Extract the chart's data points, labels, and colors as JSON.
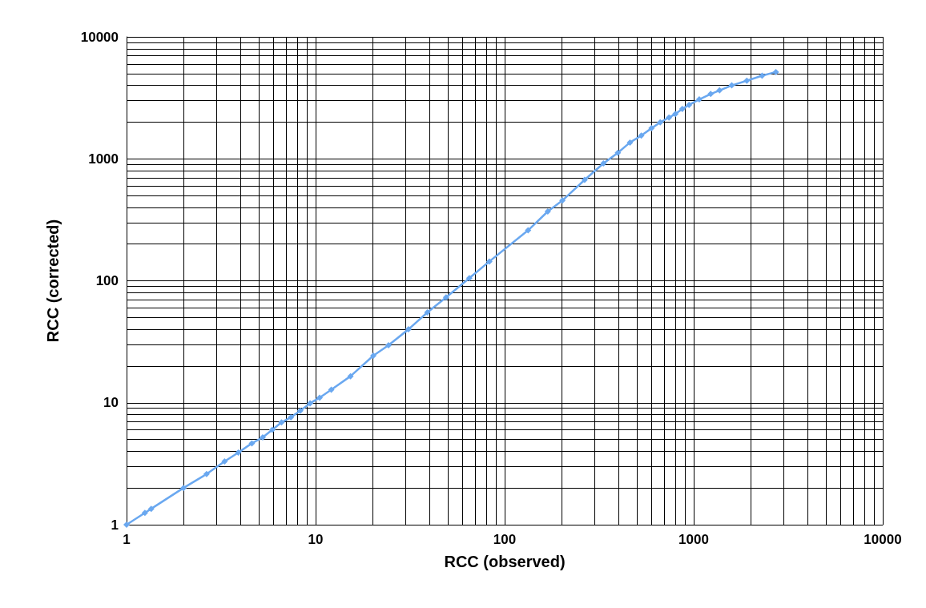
{
  "chart_data": {
    "type": "line",
    "xlabel": "RCC (observed)",
    "ylabel": "RCC (corrected)",
    "log": "xy",
    "grid": true,
    "marker": "diamond",
    "xlim": [
      1,
      10000
    ],
    "ylim": [
      1,
      10000
    ],
    "xticks": [
      1,
      10,
      100,
      1000,
      10000
    ],
    "yticks": [
      1,
      10,
      100,
      1000,
      10000
    ],
    "series": [
      {
        "color": "#6aa8f0",
        "x": [
          1,
          1.25,
          1.35,
          2,
          2.65,
          3.3,
          3.9,
          4.6,
          5.25,
          5.9,
          6.6,
          7.4,
          8.3,
          9.35,
          10.5,
          12.1,
          15.3,
          20.2,
          24.3,
          31,
          39,
          49,
          65,
          83,
          133,
          169,
          202,
          265,
          333,
          397,
          460,
          528,
          598,
          665,
          740,
          800,
          870,
          945,
          1070,
          1230,
          1370,
          1590,
          1910,
          2300,
          2720
        ],
        "values": [
          1,
          1.25,
          1.35,
          2,
          2.6,
          3.3,
          3.9,
          4.65,
          5.2,
          6,
          6.9,
          7.6,
          8.6,
          9.9,
          11,
          12.8,
          16.5,
          24.3,
          29.6,
          40,
          55,
          73,
          105,
          144,
          259,
          370,
          455,
          672,
          917,
          1120,
          1360,
          1550,
          1780,
          1990,
          2180,
          2330,
          2560,
          2770,
          3070,
          3400,
          3640,
          4000,
          4370,
          4800,
          5150
        ]
      }
    ]
  }
}
